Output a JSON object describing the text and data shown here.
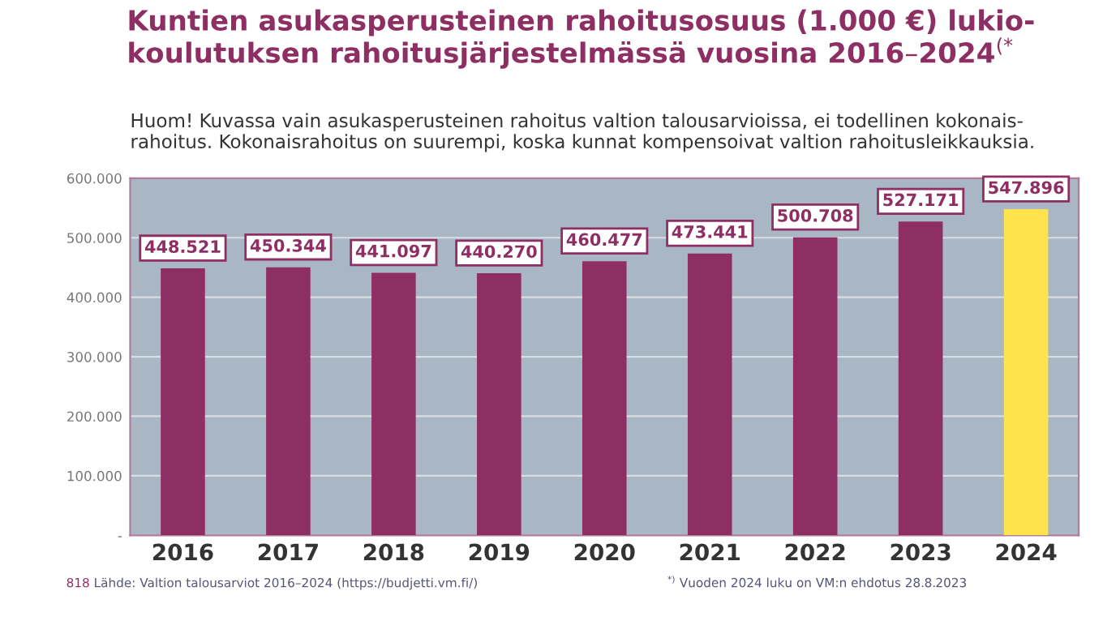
{
  "chart_data": {
    "type": "bar",
    "title": "Kuntien asukasperusteinen rahoitusosuus (1.000 €) lukio-\nkoulutuksen rahoitusjärjestelmässä vuosina 2016–2024$^{(*}$",
    "subtitle": "Huom! Kuvassa vain asukasperusteinen rahoitus valtion talousarvioissa, ei todellinen kokonais-\nrahoitus. Kokonaisrahoitus on suurempi, koska kunnat kompensoivat valtion rahoitusleikkauksia.",
    "categories": [
      "2016",
      "2017",
      "2018",
      "2019",
      "2020",
      "2021",
      "2022",
      "2023",
      "2024"
    ],
    "values": [
      448521,
      450344,
      441097,
      440270,
      460477,
      473441,
      500708,
      527171,
      547896
    ],
    "colors": [
      "#8e2f64",
      "#8e2f64",
      "#8e2f64",
      "#8e2f64",
      "#8e2f64",
      "#8e2f64",
      "#8e2f64",
      "#8e2f64",
      "#ffe34d"
    ],
    "value_labels": [
      "448.521",
      "450.344",
      "441.097",
      "440.270",
      "460.477",
      "473.441",
      "500.708",
      "527.171",
      "547.896"
    ],
    "ylim": [
      0,
      600000
    ],
    "yticks": [
      {
        "value": 0,
        "label": "-"
      },
      {
        "value": 100000,
        "label": "100.000"
      },
      {
        "value": 200000,
        "label": "200.000"
      },
      {
        "value": 300000,
        "label": "300.000"
      },
      {
        "value": 400000,
        "label": "400.000"
      },
      {
        "value": 500000,
        "label": "500.000"
      },
      {
        "value": 600000,
        "label": "600.000"
      }
    ],
    "grid": "y",
    "annotations": [
      "818",
      "Lähde: Valtion talousarviot 2016–2024 (https://budjetti.vm.fi/)",
      "$^{*)}$ Vuoden 2024 luku on VM:n ehdotus 28.8.2023"
    ]
  }
}
